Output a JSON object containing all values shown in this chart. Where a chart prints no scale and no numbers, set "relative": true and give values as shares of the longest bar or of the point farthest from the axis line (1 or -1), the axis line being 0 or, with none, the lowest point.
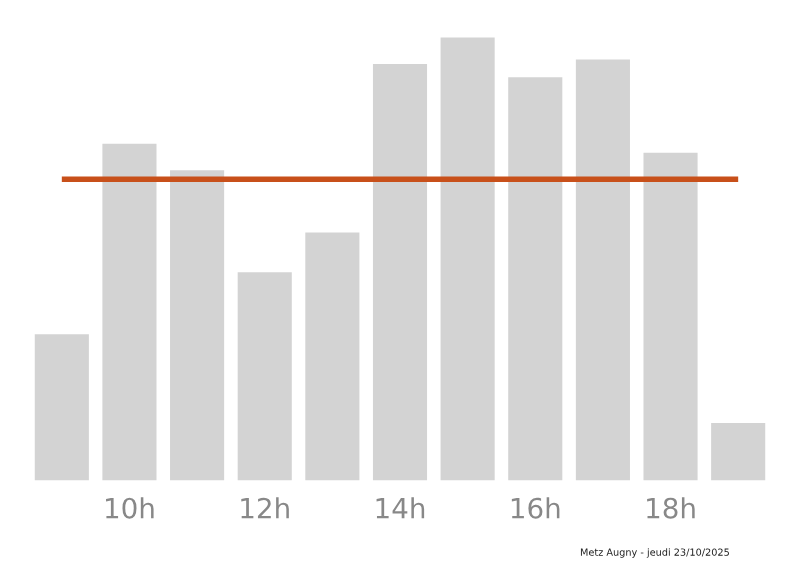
{
  "chart_data": {
    "type": "bar",
    "relative": true,
    "categories": [
      null,
      "10h",
      null,
      "12h",
      null,
      "14h",
      null,
      "16h",
      null,
      "18h",
      null
    ],
    "values": [
      0.33,
      0.76,
      0.7,
      0.47,
      0.56,
      0.94,
      1,
      0.91,
      0.95,
      0.74,
      0.13
    ],
    "color": "#d3d3d3",
    "ref_lines": [
      {
        "axis": "y",
        "value": 0.68,
        "color": "#c8501a"
      }
    ],
    "annotations": [
      "Metz Augny - jeudi 23/10/2025"
    ],
    "grid": false,
    "legend": false
  }
}
